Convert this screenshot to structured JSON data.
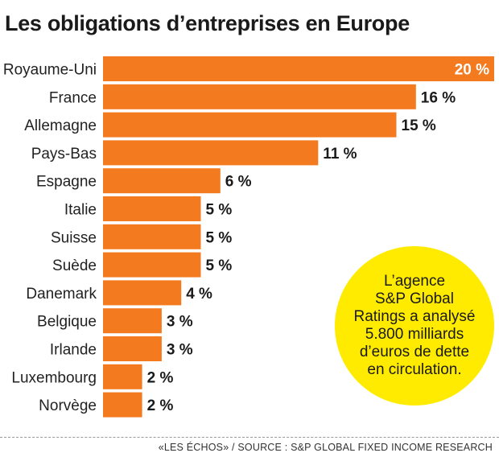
{
  "chart_data": {
    "type": "bar",
    "orientation": "horizontal",
    "title": "Les obligations d’entreprises en Europe",
    "categories": [
      "Royaume-Uni",
      "France",
      "Allemagne",
      "Pays-Bas",
      "Espagne",
      "Italie",
      "Suisse",
      "Suède",
      "Danemark",
      "Belgique",
      "Irlande",
      "Luxembourg",
      "Norvège"
    ],
    "values": [
      20,
      16,
      15,
      11,
      6,
      5,
      5,
      5,
      4,
      3,
      3,
      2,
      2
    ],
    "value_labels": [
      "20 %",
      "16 %",
      "15 %",
      "11 %",
      "6 %",
      "5 %",
      "5 %",
      "5 %",
      "4 %",
      "3 %",
      "3 %",
      "2 %",
      "2 %"
    ],
    "bar_color": "#f47a20",
    "xlim": [
      0,
      20
    ],
    "grid": false,
    "legend": "none"
  },
  "callout": {
    "lines": [
      "L’agence",
      "S&P Global",
      "Ratings a analysé",
      "5.800 milliards",
      "d’euros de dette",
      "en circulation."
    ],
    "color": "#ffeb00"
  },
  "source": "«LES ÉCHOS» / SOURCE : S&P GLOBAL FIXED INCOME RESEARCH"
}
